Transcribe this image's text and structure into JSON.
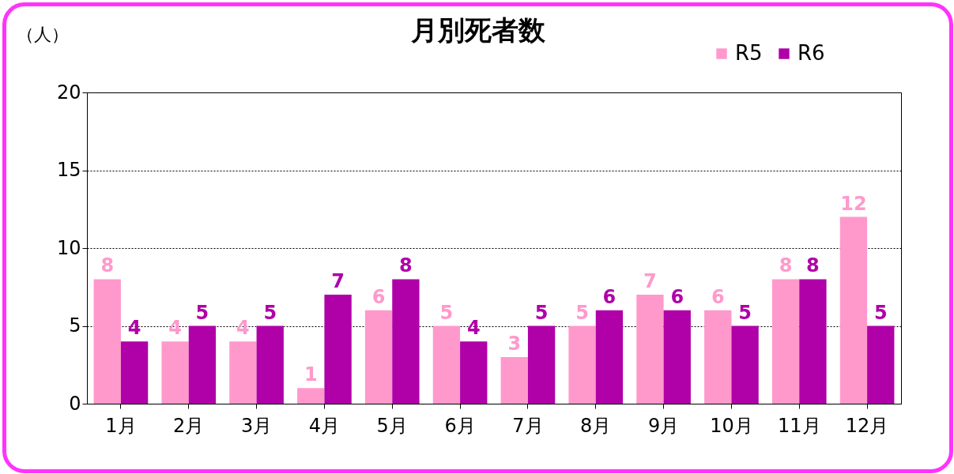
{
  "chart_data": {
    "type": "bar",
    "title": "月別死者数",
    "ylabel": "（人）",
    "categories": [
      "1月",
      "2月",
      "3月",
      "4月",
      "5月",
      "6月",
      "7月",
      "8月",
      "9月",
      "10月",
      "11月",
      "12月"
    ],
    "series": [
      {
        "name": "R5",
        "color": "#ff99cc",
        "values": [
          8,
          4,
          4,
          1,
          6,
          5,
          3,
          5,
          7,
          6,
          8,
          12
        ]
      },
      {
        "name": "R6",
        "color": "#b000a8",
        "values": [
          4,
          5,
          5,
          7,
          8,
          4,
          5,
          6,
          6,
          5,
          8,
          5
        ]
      }
    ],
    "ylim": [
      0,
      20
    ],
    "yticks": [
      0,
      5,
      10,
      15,
      20
    ],
    "grid": "y",
    "legend": "top right",
    "data_labels": true
  }
}
